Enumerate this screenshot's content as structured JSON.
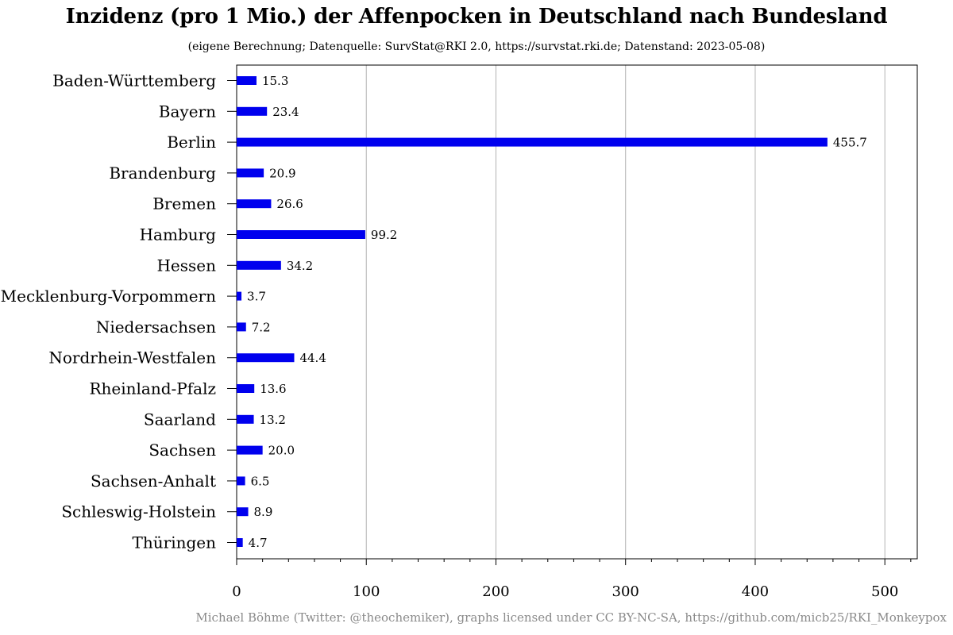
{
  "title": "Inzidenz (pro 1 Mio.) der Affenpocken in Deutschland nach Bundesland",
  "subtitle": "(eigene Berechnung; Datenquelle: SurvStat@RKI 2.0, https://survstat.rki.de; Datenstand: 2023-05-08)",
  "caption": "Michael Böhme (Twitter: @theochemiker), graphs licensed under CC BY-NC-SA, https://github.com/micb25/RKI_Monkeypox",
  "colors": {
    "bar": "#0000ee",
    "grid": "#b3b3b3",
    "axis": "#000000",
    "caption": "#8a8a8a"
  },
  "chart_data": {
    "type": "bar",
    "orientation": "horizontal",
    "title": "Inzidenz (pro 1 Mio.) der Affenpocken in Deutschland nach Bundesland",
    "subtitle": "(eigene Berechnung; Datenquelle: SurvStat@RKI 2.0, https://survstat.rki.de; Datenstand: 2023-05-08)",
    "xlabel": "",
    "ylabel": "",
    "xlim": [
      0,
      525
    ],
    "xticks": [
      0,
      100,
      200,
      300,
      400,
      500
    ],
    "xtick_labels": [
      "0",
      "100",
      "200",
      "300",
      "400",
      "500"
    ],
    "minor_tick_step": 20,
    "grid": "vertical major lines",
    "legend": "none",
    "categories": [
      "Baden-Württemberg",
      "Bayern",
      "Berlin",
      "Brandenburg",
      "Bremen",
      "Hamburg",
      "Hessen",
      "Mecklenburg-Vorpommern",
      "Niedersachsen",
      "Nordrhein-Westfalen",
      "Rheinland-Pfalz",
      "Saarland",
      "Sachsen",
      "Sachsen-Anhalt",
      "Schleswig-Holstein",
      "Thüringen"
    ],
    "values": [
      15.3,
      23.4,
      455.7,
      20.9,
      26.6,
      99.2,
      34.2,
      3.7,
      7.2,
      44.4,
      13.6,
      13.2,
      20.0,
      6.5,
      8.9,
      4.7
    ],
    "value_labels": [
      "15.3",
      "23.4",
      "455.7",
      "20.9",
      "26.6",
      "99.2",
      "34.2",
      "3.7",
      "7.2",
      "44.4",
      "13.6",
      "13.2",
      "20.0",
      "6.5",
      "8.9",
      "4.7"
    ]
  }
}
